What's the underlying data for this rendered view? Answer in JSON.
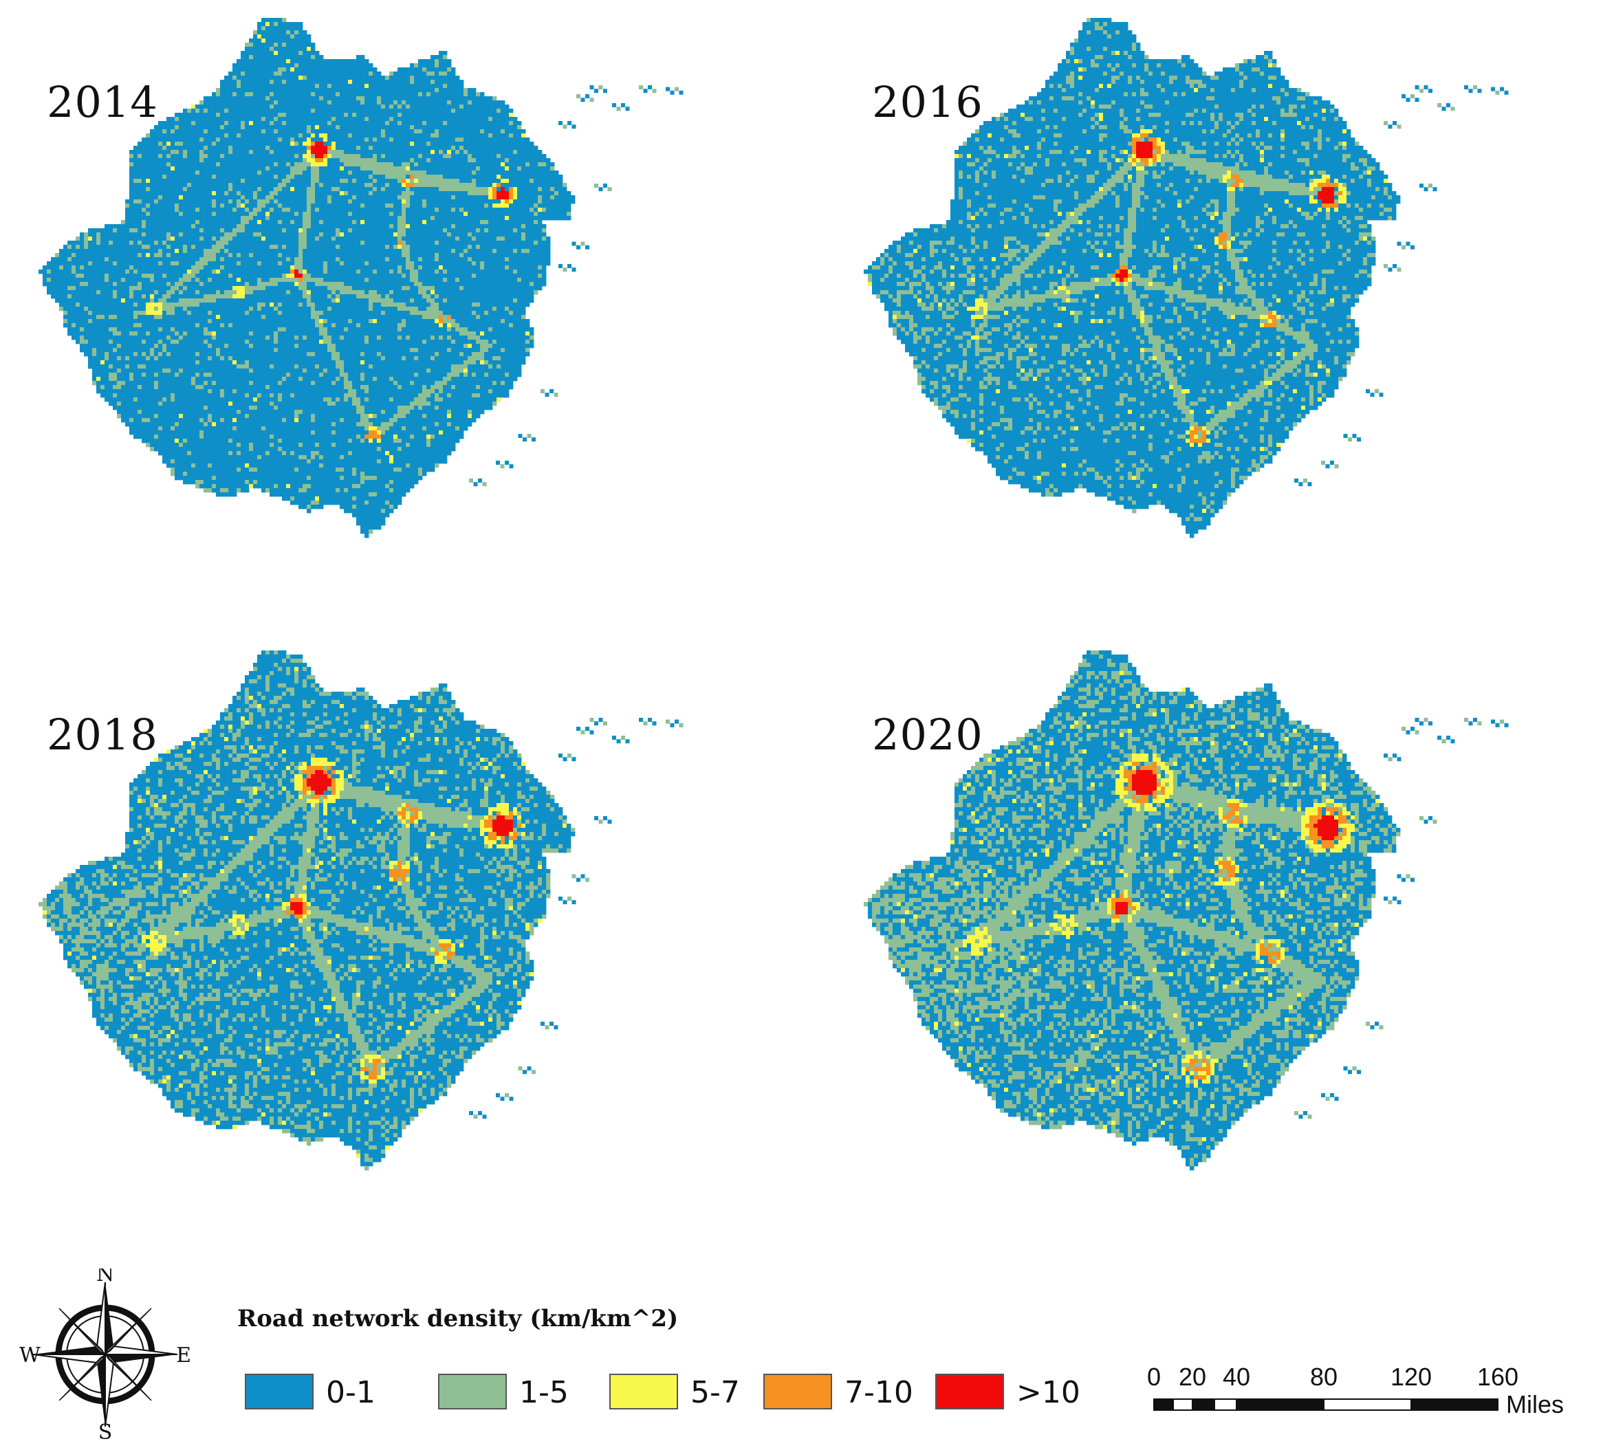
{
  "colors": {
    "class_0_1": "#0f8fc8",
    "class_1_5": "#8fbf95",
    "class_5_7": "#f8f84a",
    "class_7_10": "#f79120",
    "class_gt_10": "#f20a0a"
  },
  "panels": [
    {
      "year": "2014",
      "level": 1
    },
    {
      "year": "2016",
      "level": 2
    },
    {
      "year": "2018",
      "level": 3
    },
    {
      "year": "2020",
      "level": 4
    }
  ],
  "legend": {
    "title": "Road network density (km/km^2)",
    "items": [
      {
        "label": "0-1",
        "color": "#0f8fc8"
      },
      {
        "label": "1-5",
        "color": "#8fbf95"
      },
      {
        "label": "5-7",
        "color": "#f8f84a"
      },
      {
        "label": "7-10",
        "color": "#f79120"
      },
      {
        "label": ">10",
        "color": "#f20a0a"
      }
    ]
  },
  "compass": {
    "n": "N",
    "s": "S",
    "e": "E",
    "w": "W",
    "icon": "north-arrow-compass-rose-icon"
  },
  "scale_bar": {
    "ticks": [
      "0",
      "20",
      "40",
      "80",
      "120",
      "160"
    ],
    "unit": "Miles"
  }
}
